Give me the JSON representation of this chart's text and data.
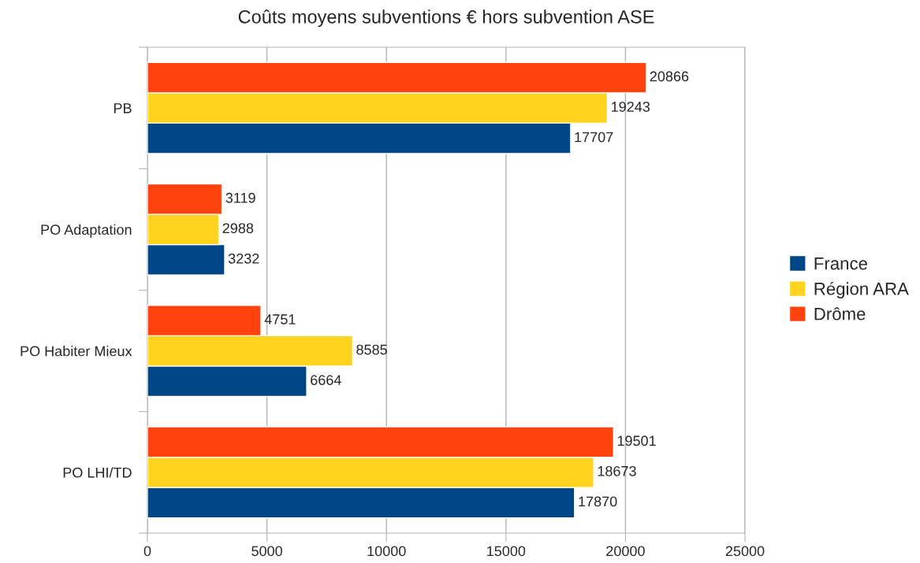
{
  "chart_data": {
    "type": "bar",
    "orientation": "horizontal",
    "title": "Coûts moyens subventions € hors subvention ASE",
    "categories": [
      "PB",
      "PO Adaptation",
      "PO Habiter Mieux",
      "PO LHI/TD"
    ],
    "series": [
      {
        "name": "France",
        "color": "#004586",
        "values": [
          17707,
          3232,
          6664,
          17870
        ]
      },
      {
        "name": "Région ARA",
        "color": "#ffd320",
        "values": [
          19243,
          2988,
          8585,
          18673
        ]
      },
      {
        "name": "Drôme",
        "color": "#ff420e",
        "values": [
          20866,
          3119,
          4751,
          19501
        ]
      }
    ],
    "xlim": [
      0,
      25000
    ],
    "xticks": [
      0,
      5000,
      10000,
      15000,
      20000,
      25000
    ],
    "grid": "x",
    "legend": "right",
    "data_labels": true
  }
}
